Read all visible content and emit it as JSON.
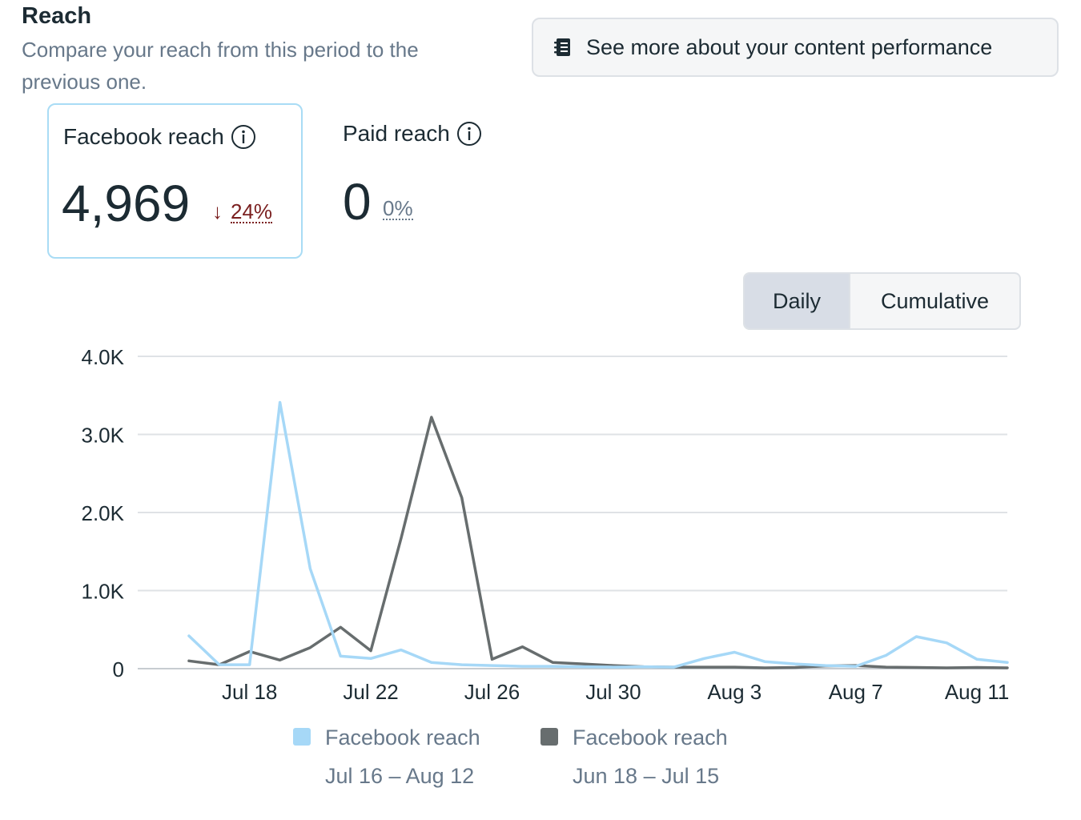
{
  "header": {
    "title": "Reach",
    "subtitle": "Compare your reach from this period to the previous one.",
    "performance_button": "See more about your content performance"
  },
  "metrics": [
    {
      "label": "Facebook reach",
      "value": "4,969",
      "delta_arrow": "↓",
      "delta": "24%",
      "selected": true
    },
    {
      "label": "Paid reach",
      "value": "0",
      "delta_arrow": "",
      "delta": "0%",
      "selected": false
    }
  ],
  "view_toggle": {
    "options": [
      "Daily",
      "Cumulative"
    ],
    "selected": "Daily"
  },
  "colors": {
    "current": "#a6d8f7",
    "previous": "#676d6e",
    "accent_border": "#a9dcf5",
    "negative": "#7a1f1f"
  },
  "chart_data": {
    "type": "line",
    "ylim": [
      0,
      4000
    ],
    "yticks": [
      0,
      1000,
      2000,
      3000,
      4000
    ],
    "ytick_labels": [
      "0",
      "1.0K",
      "2.0K",
      "3.0K",
      "4.0K"
    ],
    "xtick_labels": [
      "Jul 18",
      "Jul 22",
      "Jul 26",
      "Jul 30",
      "Aug 3",
      "Aug 7",
      "Aug 11"
    ],
    "x": [
      "Jul 16",
      "Jul 17",
      "Jul 18",
      "Jul 19",
      "Jul 20",
      "Jul 21",
      "Jul 22",
      "Jul 23",
      "Jul 24",
      "Jul 25",
      "Jul 26",
      "Jul 27",
      "Jul 28",
      "Jul 29",
      "Jul 30",
      "Jul 31",
      "Aug 1",
      "Aug 2",
      "Aug 3",
      "Aug 4",
      "Aug 5",
      "Aug 6",
      "Aug 7",
      "Aug 8",
      "Aug 9",
      "Aug 10",
      "Aug 11",
      "Aug 12"
    ],
    "series": [
      {
        "name": "Facebook reach",
        "range": "Jul 16 – Aug 12",
        "values": [
          420,
          50,
          50,
          3410,
          1280,
          160,
          130,
          240,
          80,
          50,
          40,
          30,
          30,
          25,
          20,
          25,
          20,
          130,
          210,
          90,
          60,
          40,
          30,
          170,
          410,
          330,
          120,
          80
        ]
      },
      {
        "name": "Facebook reach",
        "range": "Jun 18 – Jul 15",
        "values": [
          100,
          50,
          220,
          110,
          270,
          530,
          230,
          1670,
          3220,
          2190,
          120,
          280,
          80,
          60,
          40,
          25,
          20,
          20,
          20,
          10,
          15,
          35,
          40,
          20,
          15,
          10,
          15,
          10
        ]
      }
    ]
  }
}
